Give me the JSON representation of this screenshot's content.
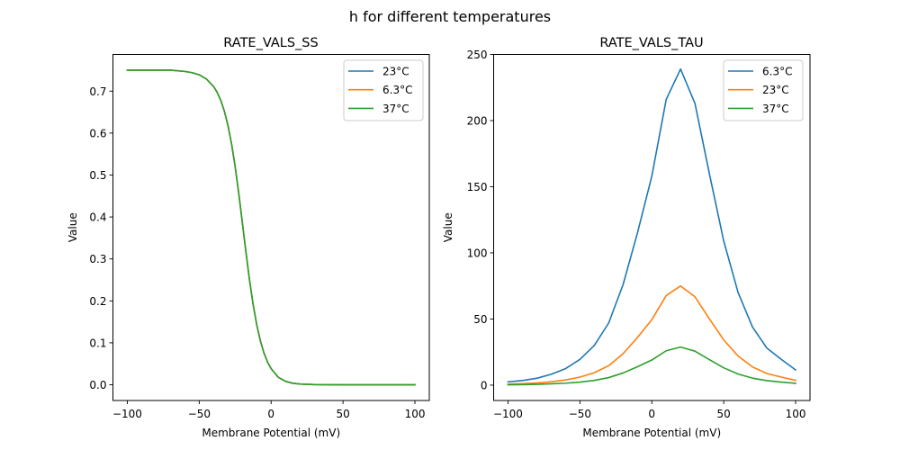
{
  "chart_data": {
    "suptitle": "h for different temperatures",
    "colors": {
      "C0": "#1f77b4",
      "C1": "#ff7f0e",
      "C2": "#2ca02c"
    },
    "panels": [
      {
        "type": "line",
        "title": "RATE_VALS_SS",
        "xlabel": "Membrane Potential (mV)",
        "ylabel": "Value",
        "xlim": [
          -110,
          110
        ],
        "ylim": [
          -0.0375,
          0.7875
        ],
        "xticks": [
          -100,
          -50,
          0,
          50,
          100
        ],
        "xtick_labels": [
          "−100",
          "−50",
          "0",
          "50",
          "100"
        ],
        "yticks": [
          0.0,
          0.1,
          0.2,
          0.3,
          0.4,
          0.5,
          0.6,
          0.7
        ],
        "ytick_labels": [
          "0.0",
          "0.1",
          "0.2",
          "0.3",
          "0.4",
          "0.5",
          "0.6",
          "0.7"
        ],
        "grid": false,
        "legend_position": "top-right",
        "x": [
          -100,
          -90,
          -80,
          -70,
          -60,
          -55,
          -50,
          -45,
          -40,
          -37.5,
          -35,
          -32.5,
          -30,
          -27.5,
          -25,
          -22.5,
          -20,
          -17.5,
          -15,
          -12.5,
          -10,
          -7.5,
          -5,
          -2.5,
          0,
          5,
          10,
          15,
          20,
          30,
          40,
          50,
          60,
          70,
          80,
          90,
          100
        ],
        "series": [
          {
            "name": "23°C",
            "color": "C0",
            "values": [
              0.75,
              0.75,
              0.75,
              0.75,
              0.747,
              0.744,
              0.739,
              0.729,
              0.711,
              0.697,
              0.678,
              0.652,
              0.618,
              0.574,
              0.52,
              0.456,
              0.386,
              0.316,
              0.249,
              0.191,
              0.143,
              0.105,
              0.076,
              0.054,
              0.0385,
              0.0178,
              0.0082,
              0.0037,
              0.0017,
              0.0004,
              0.0001,
              0.0,
              0.0,
              0.0,
              0.0,
              0.0,
              0.0
            ]
          },
          {
            "name": "6.3°C",
            "color": "C1",
            "values": [
              0.75,
              0.75,
              0.75,
              0.75,
              0.747,
              0.744,
              0.739,
              0.729,
              0.711,
              0.697,
              0.678,
              0.652,
              0.618,
              0.574,
              0.52,
              0.456,
              0.386,
              0.316,
              0.249,
              0.191,
              0.143,
              0.105,
              0.076,
              0.054,
              0.0385,
              0.0178,
              0.0082,
              0.0037,
              0.0017,
              0.0004,
              0.0001,
              0.0,
              0.0,
              0.0,
              0.0,
              0.0,
              0.0
            ]
          },
          {
            "name": "37°C",
            "color": "C2",
            "values": [
              0.75,
              0.75,
              0.75,
              0.75,
              0.747,
              0.744,
              0.739,
              0.729,
              0.711,
              0.697,
              0.678,
              0.652,
              0.618,
              0.574,
              0.52,
              0.456,
              0.386,
              0.316,
              0.249,
              0.191,
              0.143,
              0.105,
              0.076,
              0.054,
              0.0385,
              0.0178,
              0.0082,
              0.0037,
              0.0017,
              0.0004,
              0.0001,
              0.0,
              0.0,
              0.0,
              0.0,
              0.0,
              0.0
            ]
          }
        ]
      },
      {
        "type": "line",
        "title": "RATE_VALS_TAU",
        "xlabel": "Membrane Potential (mV)",
        "ylabel": "Value",
        "xlim": [
          -110,
          110
        ],
        "ylim": [
          -11.6,
          250
        ],
        "xticks": [
          -100,
          -50,
          0,
          50,
          100
        ],
        "xtick_labels": [
          "−100",
          "−50",
          "0",
          "50",
          "100"
        ],
        "yticks": [
          0,
          50,
          100,
          150,
          200,
          250
        ],
        "ytick_labels": [
          "0",
          "50",
          "100",
          "150",
          "200",
          "250"
        ],
        "grid": false,
        "legend_position": "top-right",
        "x": [
          -100,
          -90,
          -80,
          -70,
          -60,
          -50,
          -40,
          -30,
          -20,
          -10,
          0,
          10,
          20,
          30,
          40,
          50,
          60,
          70,
          80,
          90,
          100
        ],
        "series": [
          {
            "name": "6.3°C",
            "color": "C0",
            "values": [
              2.5,
              3.5,
              5.2,
              8.2,
              12.5,
              19.5,
              30,
              47,
              76,
              115,
              158,
              216,
              239,
              213,
              160,
              109,
              70,
              44,
              28,
              19.5,
              11.5
            ]
          },
          {
            "name": "23°C",
            "color": "C1",
            "values": [
              0.8,
              1.1,
              1.6,
              2.6,
              3.9,
              6.1,
              9.4,
              14.7,
              23.8,
              36,
              49.5,
              67.7,
              75,
              66.8,
              50.2,
              34.2,
              22,
              13.8,
              8.8,
              6.1,
              3.6
            ]
          },
          {
            "name": "37°C",
            "color": "C2",
            "values": [
              0.3,
              0.4,
              0.6,
              1.0,
              1.5,
              2.3,
              3.6,
              5.7,
              9.2,
              13.9,
              19,
              26,
              28.8,
              25.7,
              19.3,
              13.1,
              8.4,
              5.3,
              3.4,
              2.3,
              1.4
            ]
          }
        ]
      }
    ]
  }
}
